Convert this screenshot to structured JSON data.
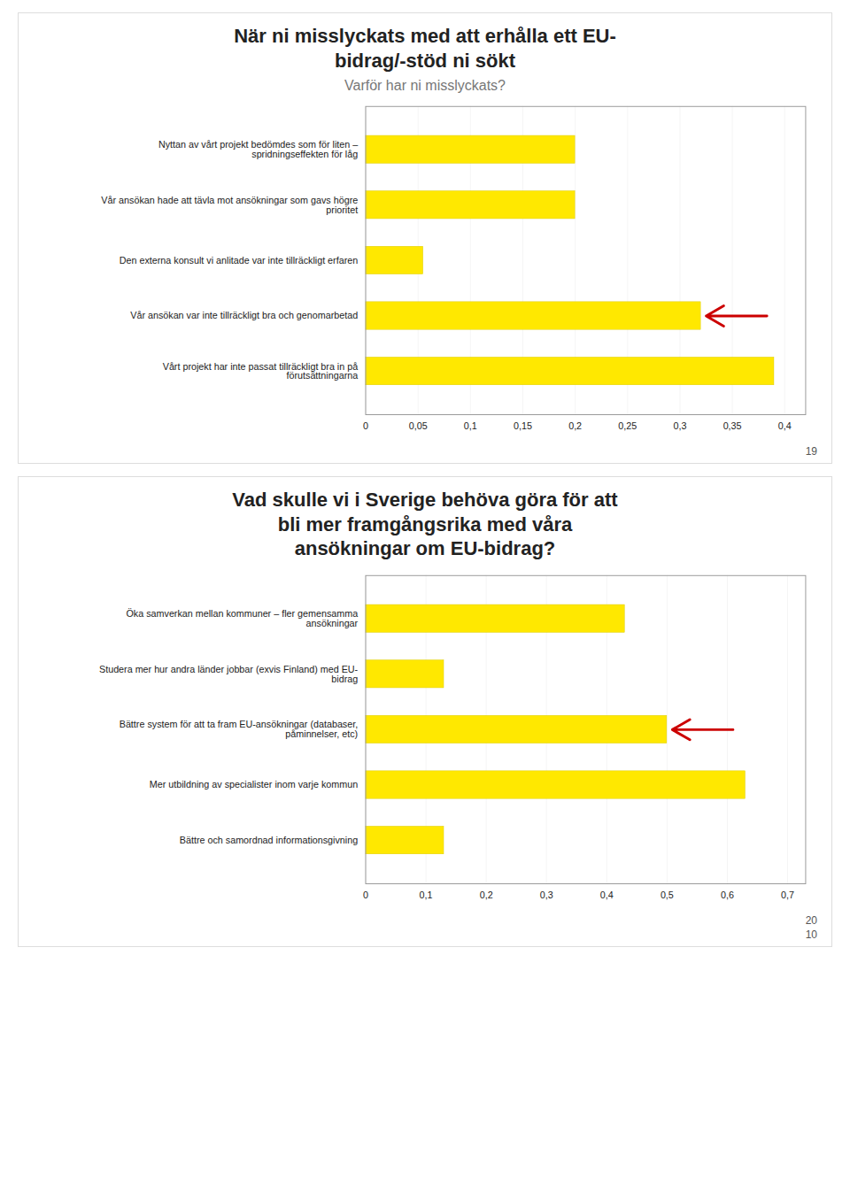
{
  "chart_data": [
    {
      "type": "bar",
      "orientation": "horizontal",
      "title": "När ni misslyckats med att erhålla ett EU-\nbidrag/-stöd ni sökt",
      "subtitle": "Varför har ni misslyckats?",
      "categories": [
        "Nyttan av vårt projekt bedömdes som för liten –\nspridningseffekten för låg",
        "Vår ansökan hade att tävla mot ansökningar som gavs högre\nprioritet",
        "Den externa konsult vi anlitade var inte tillräckligt erfaren",
        "Vår ansökan var inte tillräckligt bra och genomarbetad",
        "Vårt projekt har inte passat tillräckligt bra in på\nförutsättningarna"
      ],
      "values": [
        0.2,
        0.2,
        0.055,
        0.32,
        0.39
      ],
      "color": "#FFE800",
      "xlim": [
        0,
        0.42
      ],
      "xticks": [
        0,
        {
          "value": 0.05,
          "label": "0,05"
        },
        {
          "value": 0.1,
          "label": "0,1"
        },
        {
          "value": 0.15,
          "label": "0,15"
        },
        {
          "value": 0.2,
          "label": "0,2"
        },
        {
          "value": 0.25,
          "label": "0,25"
        },
        {
          "value": 0.3,
          "label": "0,3"
        },
        {
          "value": 0.35,
          "label": "0,35"
        },
        {
          "value": 0.4,
          "label": "0,4"
        }
      ],
      "grid": true,
      "annotations": [
        {
          "type": "arrow",
          "category": "Vår ansökan var inte tillräckligt bra och genomarbetad",
          "color": "#CC0000"
        },
        {
          "text": "19"
        }
      ]
    },
    {
      "type": "bar",
      "orientation": "horizontal",
      "title": "Vad skulle vi i Sverige behöva göra för att\nbli mer framgångsrika med våra\nansökningar om EU-bidrag?",
      "categories": [
        "Öka samverkan mellan kommuner – fler gemensamma\nansökningar",
        "Studera mer hur andra länder jobbar (exvis Finland) med EU-\nbidrag",
        "Bättre system för att ta fram EU-ansökningar (databaser,\npåminnelser, etc)",
        "Mer utbildning av specialister inom varje kommun",
        "Bättre och samordnad informationsgivning"
      ],
      "values": [
        0.43,
        0.13,
        0.5,
        0.63,
        0.13
      ],
      "color": "#FFE800",
      "xlim": [
        0,
        0.73
      ],
      "xticks": [
        0,
        {
          "value": 0.1,
          "label": "0,1"
        },
        {
          "value": 0.2,
          "label": "0,2"
        },
        {
          "value": 0.3,
          "label": "0,3"
        },
        {
          "value": 0.4,
          "label": "0,4"
        },
        {
          "value": 0.5,
          "label": "0,5"
        },
        {
          "value": 0.6,
          "label": "0,6"
        },
        {
          "value": 0.7,
          "label": "0,7"
        }
      ],
      "grid": true,
      "annotations": [
        {
          "type": "arrow",
          "category": "Bättre system för att ta fram EU-ansökningar (databaser,\npåminnelser, etc)",
          "color": "#CC0000"
        },
        {
          "text": "20"
        },
        {
          "text": "10"
        }
      ]
    }
  ]
}
